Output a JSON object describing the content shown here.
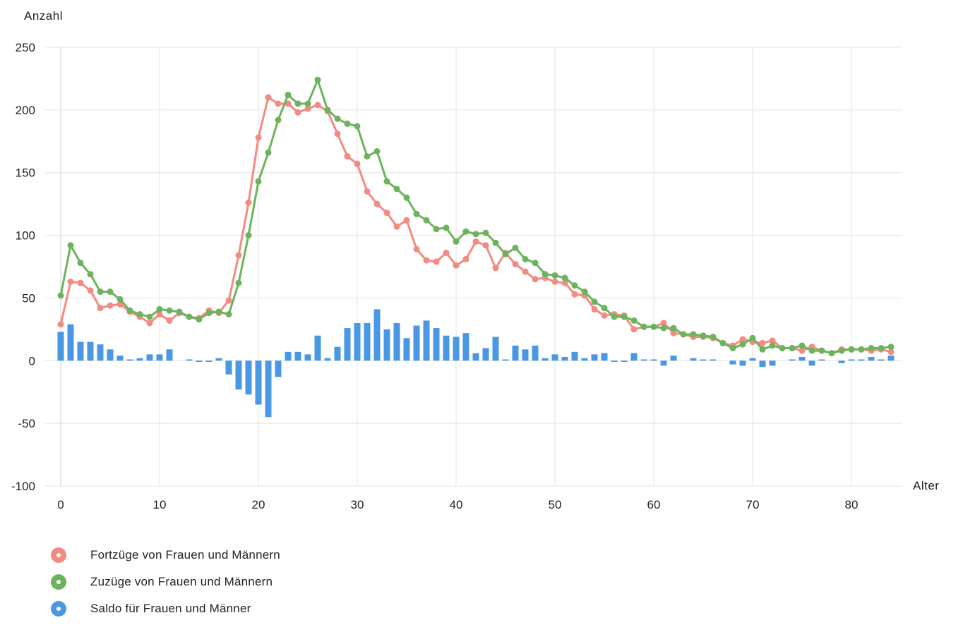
{
  "chart_data": {
    "type": "line",
    "xlabel": "Alter",
    "ylabel": "Anzahl",
    "xlim": [
      0,
      85
    ],
    "ylim": [
      -100,
      250
    ],
    "x_ticks": [
      0,
      10,
      20,
      30,
      40,
      50,
      60,
      70,
      80
    ],
    "y_ticks": [
      250,
      200,
      150,
      100,
      50,
      0,
      -50,
      -100
    ],
    "grid": true,
    "legend_position": "bottom-left",
    "x": [
      0,
      1,
      2,
      3,
      4,
      5,
      6,
      7,
      8,
      9,
      10,
      11,
      12,
      13,
      14,
      15,
      16,
      17,
      18,
      19,
      20,
      21,
      22,
      23,
      24,
      25,
      26,
      27,
      28,
      29,
      30,
      31,
      32,
      33,
      34,
      35,
      36,
      37,
      38,
      39,
      40,
      41,
      42,
      43,
      44,
      45,
      46,
      47,
      48,
      49,
      50,
      51,
      52,
      53,
      54,
      55,
      56,
      57,
      58,
      59,
      60,
      61,
      62,
      63,
      64,
      65,
      66,
      67,
      68,
      69,
      70,
      71,
      72,
      73,
      74,
      75,
      76,
      77,
      78,
      79,
      80,
      81,
      82,
      83,
      84
    ],
    "series": [
      {
        "name": "Fortzüge von Frauen und Männern",
        "type": "line",
        "color": "#f28b82",
        "values": [
          29,
          63,
          62,
          56,
          42,
          44,
          45,
          39,
          35,
          30,
          37,
          32,
          38,
          35,
          34,
          40,
          38,
          48,
          84,
          126,
          178,
          210,
          205,
          205,
          198,
          201,
          204,
          199,
          181,
          163,
          157,
          135,
          125,
          118,
          107,
          112,
          89,
          80,
          79,
          86,
          76,
          81,
          95,
          92,
          74,
          86,
          77,
          71,
          65,
          66,
          63,
          62,
          53,
          52,
          41,
          36,
          37,
          36,
          25,
          27,
          27,
          30,
          22,
          21,
          19,
          19,
          18,
          14,
          12,
          17,
          15,
          14,
          16,
          10,
          10,
          8,
          11,
          8,
          6,
          9,
          9,
          9,
          8,
          9,
          7
        ]
      },
      {
        "name": "Zuzüge von Frauen und Männern",
        "type": "line",
        "color": "#6db35e",
        "values": [
          52,
          92,
          78,
          69,
          55,
          55,
          49,
          40,
          37,
          35,
          41,
          40,
          39,
          35,
          33,
          38,
          39,
          37,
          62,
          100,
          143,
          166,
          192,
          212,
          205,
          205,
          224,
          200,
          193,
          189,
          187,
          163,
          167,
          143,
          137,
          130,
          117,
          112,
          105,
          106,
          95,
          103,
          101,
          102,
          94,
          85,
          90,
          81,
          78,
          69,
          68,
          66,
          60,
          55,
          47,
          42,
          35,
          35,
          32,
          27,
          27,
          26,
          26,
          21,
          21,
          20,
          19,
          14,
          10,
          13,
          18,
          9,
          12,
          10,
          10,
          12,
          8,
          8,
          6,
          8,
          9,
          9,
          10,
          10,
          11
        ]
      },
      {
        "name": "Saldo für Frauen und Männer",
        "type": "bar",
        "color": "#4a98e3",
        "values": [
          23,
          29,
          15,
          15,
          13,
          9,
          4,
          1,
          2,
          5,
          5,
          9,
          0,
          1,
          -1,
          -1,
          2,
          -11,
          -23,
          -27,
          -35,
          -45,
          -13,
          7,
          7,
          5,
          20,
          2,
          11,
          26,
          30,
          30,
          41,
          25,
          30,
          18,
          28,
          32,
          26,
          20,
          19,
          22,
          6,
          10,
          19,
          1,
          12,
          9,
          12,
          2,
          5,
          3,
          7,
          2,
          5,
          6,
          -1,
          -1,
          6,
          1,
          1,
          -4,
          4,
          0,
          2,
          1,
          1,
          0,
          -3,
          -4,
          2,
          -5,
          -4,
          0,
          1,
          3,
          -4,
          1,
          0,
          -2,
          1,
          1,
          3,
          1,
          4
        ]
      }
    ]
  }
}
